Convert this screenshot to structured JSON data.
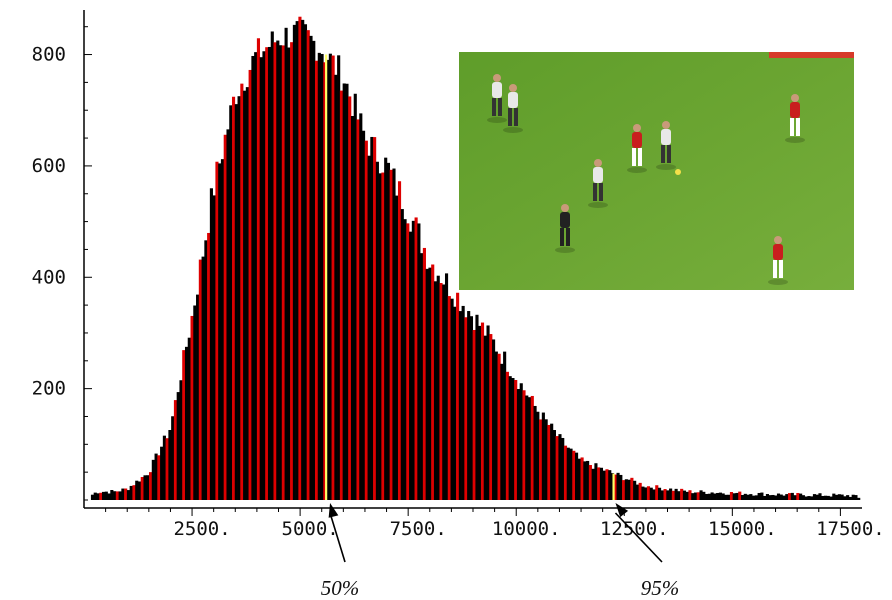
{
  "chart_data": {
    "type": "bar",
    "title": "",
    "xlabel": "",
    "ylabel": "",
    "xlim": [
      0,
      18000
    ],
    "ylim": [
      0,
      880
    ],
    "x_ticks": [
      {
        "value": 2500,
        "label": "2500."
      },
      {
        "value": 5000,
        "label": "5000."
      },
      {
        "value": 7500,
        "label": "7500."
      },
      {
        "value": 10000,
        "label": "10000."
      },
      {
        "value": 12500,
        "label": "12500."
      },
      {
        "value": 15000,
        "label": "15000."
      },
      {
        "value": 17500,
        "label": "17500."
      }
    ],
    "y_ticks": [
      {
        "value": 200,
        "label": "200"
      },
      {
        "value": 400,
        "label": "400"
      },
      {
        "value": 600,
        "label": "600"
      },
      {
        "value": 800,
        "label": "800"
      }
    ],
    "profile": [
      [
        0,
        0
      ],
      [
        300,
        15
      ],
      [
        700,
        15
      ],
      [
        1000,
        20
      ],
      [
        1500,
        50
      ],
      [
        2000,
        130
      ],
      [
        2500,
        330
      ],
      [
        3000,
        560
      ],
      [
        3500,
        730
      ],
      [
        4000,
        800
      ],
      [
        4500,
        830
      ],
      [
        5000,
        840
      ],
      [
        5500,
        810
      ],
      [
        6000,
        760
      ],
      [
        6500,
        650
      ],
      [
        7000,
        600
      ],
      [
        7500,
        520
      ],
      [
        8000,
        430
      ],
      [
        8500,
        380
      ],
      [
        9000,
        330
      ],
      [
        9500,
        280
      ],
      [
        10000,
        220
      ],
      [
        10500,
        160
      ],
      [
        11000,
        110
      ],
      [
        11500,
        70
      ],
      [
        12000,
        55
      ],
      [
        12500,
        40
      ],
      [
        13000,
        25
      ],
      [
        14000,
        15
      ],
      [
        16000,
        10
      ],
      [
        17800,
        8
      ],
      [
        18000,
        0
      ]
    ],
    "markers": [
      {
        "x": 5600,
        "label": "50%",
        "color": "#ffff66"
      },
      {
        "x": 12250,
        "label": "95%",
        "color": "#ffff66"
      }
    ],
    "bar_colors": {
      "main": "#000000",
      "highlight": "#dd0000"
    }
  },
  "inset_image": {
    "description_name": "football-match-frame",
    "pitch_color": "#6ba532"
  }
}
